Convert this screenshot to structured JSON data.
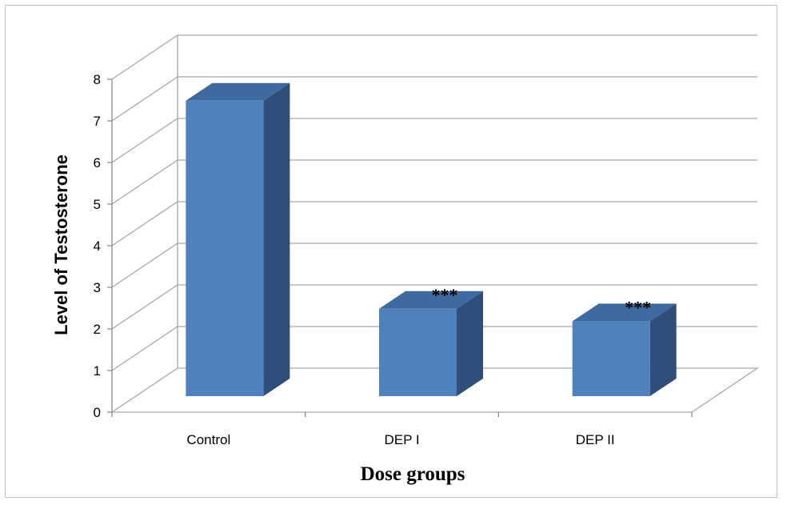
{
  "chart_data": {
    "type": "bar",
    "style": "3d-column",
    "categories": [
      "Control",
      "DEP I",
      "DEP II"
    ],
    "values": [
      7.1,
      2.1,
      1.8
    ],
    "annotations": [
      "",
      "***",
      "***"
    ],
    "xlabel": "Dose groups",
    "ylabel": "Level of Testosterone",
    "ylim": [
      0,
      8
    ],
    "yticks": [
      "0",
      "1",
      "2",
      "3",
      "4",
      "5",
      "6",
      "7",
      "8"
    ],
    "grid": true,
    "legend": "none",
    "colors": {
      "bar_front": "#4f81bd",
      "bar_side": "#2f4f7a",
      "bar_top": "#3f6aa0",
      "grid": "#a6a6a6",
      "axis": "#8c8c8c"
    }
  }
}
